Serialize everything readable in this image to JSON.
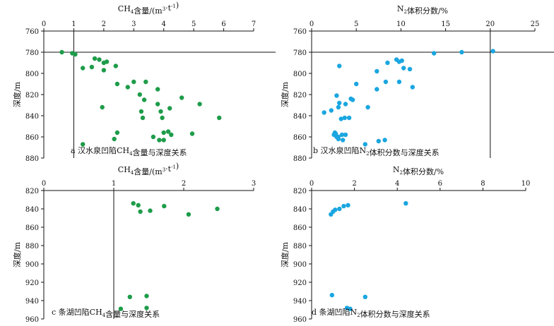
{
  "chart_data": [
    {
      "id": "a",
      "type": "scatter",
      "title": "CH4含量/(m3·t-1)",
      "caption": "a 汉水泉凹陷CH4含量与深度关系",
      "xlabel": "CH4含量/(m3·t-1)",
      "ylabel": "深度/m",
      "xlim": [
        0,
        7
      ],
      "ylim": [
        760,
        880
      ],
      "y_inverted": true,
      "x_axis_position": "top",
      "xticks": [
        0,
        1,
        2,
        3,
        4,
        5,
        6,
        7
      ],
      "yticks": [
        760,
        780,
        800,
        820,
        840,
        860,
        880
      ],
      "color": "#1e9c4a",
      "reference_lines": {
        "x": 1,
        "y": 780
      },
      "points": [
        [
          0.6,
          780
        ],
        [
          0.95,
          781
        ],
        [
          1.05,
          782
        ],
        [
          1.3,
          795
        ],
        [
          1.6,
          794
        ],
        [
          1.7,
          786
        ],
        [
          1.85,
          787
        ],
        [
          2.0,
          790
        ],
        [
          2.1,
          789
        ],
        [
          2.0,
          797
        ],
        [
          2.4,
          793
        ],
        [
          2.45,
          810
        ],
        [
          2.8,
          813
        ],
        [
          3.0,
          808
        ],
        [
          3.4,
          808
        ],
        [
          3.2,
          820
        ],
        [
          3.35,
          825
        ],
        [
          3.25,
          836
        ],
        [
          3.3,
          842
        ],
        [
          3.8,
          815
        ],
        [
          3.8,
          829
        ],
        [
          3.9,
          836
        ],
        [
          4.2,
          833
        ],
        [
          3.95,
          842
        ],
        [
          4.6,
          823
        ],
        [
          5.2,
          829
        ],
        [
          5.85,
          842
        ],
        [
          1.95,
          832
        ],
        [
          2.45,
          856
        ],
        [
          2.35,
          862
        ],
        [
          3.65,
          860
        ],
        [
          3.85,
          863
        ],
        [
          4.0,
          863
        ],
        [
          4.0,
          856
        ],
        [
          4.15,
          855
        ],
        [
          4.25,
          858
        ],
        [
          4.95,
          857
        ],
        [
          1.3,
          867
        ]
      ]
    },
    {
      "id": "b",
      "type": "scatter",
      "title": "N2体积分数/%",
      "caption": "b 汉水泉凹陷N2体积分数与深度关系",
      "xlabel": "N2体积分数/%",
      "ylabel": "深度/m",
      "xlim": [
        0,
        25
      ],
      "ylim": [
        760,
        880
      ],
      "y_inverted": true,
      "x_axis_position": "top",
      "xticks": [
        0,
        5,
        10,
        15,
        20,
        25
      ],
      "yticks": [
        760,
        780,
        800,
        820,
        840,
        860,
        880
      ],
      "color": "#1aa6e0",
      "reference_lines": {
        "x": 20,
        "y": 780
      },
      "points": [
        [
          20.3,
          779
        ],
        [
          16.8,
          780
        ],
        [
          13.7,
          781
        ],
        [
          9.5,
          787
        ],
        [
          8.5,
          790
        ],
        [
          9.8,
          789
        ],
        [
          10.1,
          788
        ],
        [
          7.3,
          798
        ],
        [
          10.3,
          795
        ],
        [
          11.0,
          796
        ],
        [
          3.1,
          793
        ],
        [
          8.3,
          808
        ],
        [
          9.8,
          808
        ],
        [
          11.3,
          813
        ],
        [
          7.3,
          815
        ],
        [
          5.0,
          810
        ],
        [
          2.8,
          821
        ],
        [
          4.6,
          825
        ],
        [
          4.4,
          824
        ],
        [
          3.1,
          828
        ],
        [
          3.0,
          832
        ],
        [
          3.8,
          829
        ],
        [
          4.2,
          842
        ],
        [
          3.3,
          843
        ],
        [
          3.7,
          842
        ],
        [
          1.4,
          837
        ],
        [
          2.2,
          835
        ],
        [
          6.3,
          832
        ],
        [
          2.6,
          856
        ],
        [
          2.5,
          858
        ],
        [
          3.0,
          860
        ],
        [
          3.4,
          858
        ],
        [
          3.8,
          858
        ],
        [
          3.0,
          862
        ],
        [
          3.5,
          863
        ],
        [
          2.7,
          857
        ],
        [
          2.8,
          860
        ],
        [
          6.0,
          867
        ],
        [
          7.5,
          864
        ],
        [
          8.2,
          863
        ]
      ]
    },
    {
      "id": "c",
      "type": "scatter",
      "title": "CH4含量/(m3·t-1)",
      "caption": "c 条湖凹陷CH4含量与深度关系",
      "xlabel": "CH4含量/(m3·t-1)",
      "ylabel": "深度/m",
      "xlim": [
        0,
        3
      ],
      "ylim": [
        820,
        960
      ],
      "y_inverted": true,
      "x_axis_position": "top",
      "xticks": [
        0,
        1,
        2,
        3
      ],
      "yticks": [
        820,
        840,
        860,
        880,
        900,
        920,
        940,
        960
      ],
      "color": "#1e9c4a",
      "reference_lines": {
        "x": 1
      },
      "points": [
        [
          1.28,
          834
        ],
        [
          1.35,
          836
        ],
        [
          1.38,
          843
        ],
        [
          1.52,
          842
        ],
        [
          1.72,
          837
        ],
        [
          2.07,
          846
        ],
        [
          2.48,
          840
        ],
        [
          1.23,
          936
        ],
        [
          1.47,
          935
        ],
        [
          1.1,
          949
        ],
        [
          1.47,
          948
        ]
      ]
    },
    {
      "id": "d",
      "type": "scatter",
      "title": "N2体积分数/%",
      "caption": "d 条湖凹陷N2体积分数与深度关系",
      "xlabel": "N2体积分数/%",
      "ylabel": "深度/m",
      "xlim": [
        0,
        10
      ],
      "ylim": [
        820,
        960
      ],
      "y_inverted": true,
      "x_axis_position": "top",
      "xticks": [
        0,
        2,
        4,
        6,
        8,
        10
      ],
      "yticks": [
        820,
        840,
        860,
        880,
        900,
        920,
        940,
        960
      ],
      "color": "#1aa6e0",
      "points": [
        [
          0.9,
          846
        ],
        [
          1.0,
          843
        ],
        [
          1.3,
          840
        ],
        [
          1.5,
          837
        ],
        [
          1.7,
          836
        ],
        [
          1.1,
          841
        ],
        [
          4.4,
          834
        ],
        [
          0.95,
          934
        ],
        [
          2.5,
          936
        ],
        [
          1.65,
          948
        ],
        [
          1.8,
          949
        ]
      ]
    }
  ]
}
